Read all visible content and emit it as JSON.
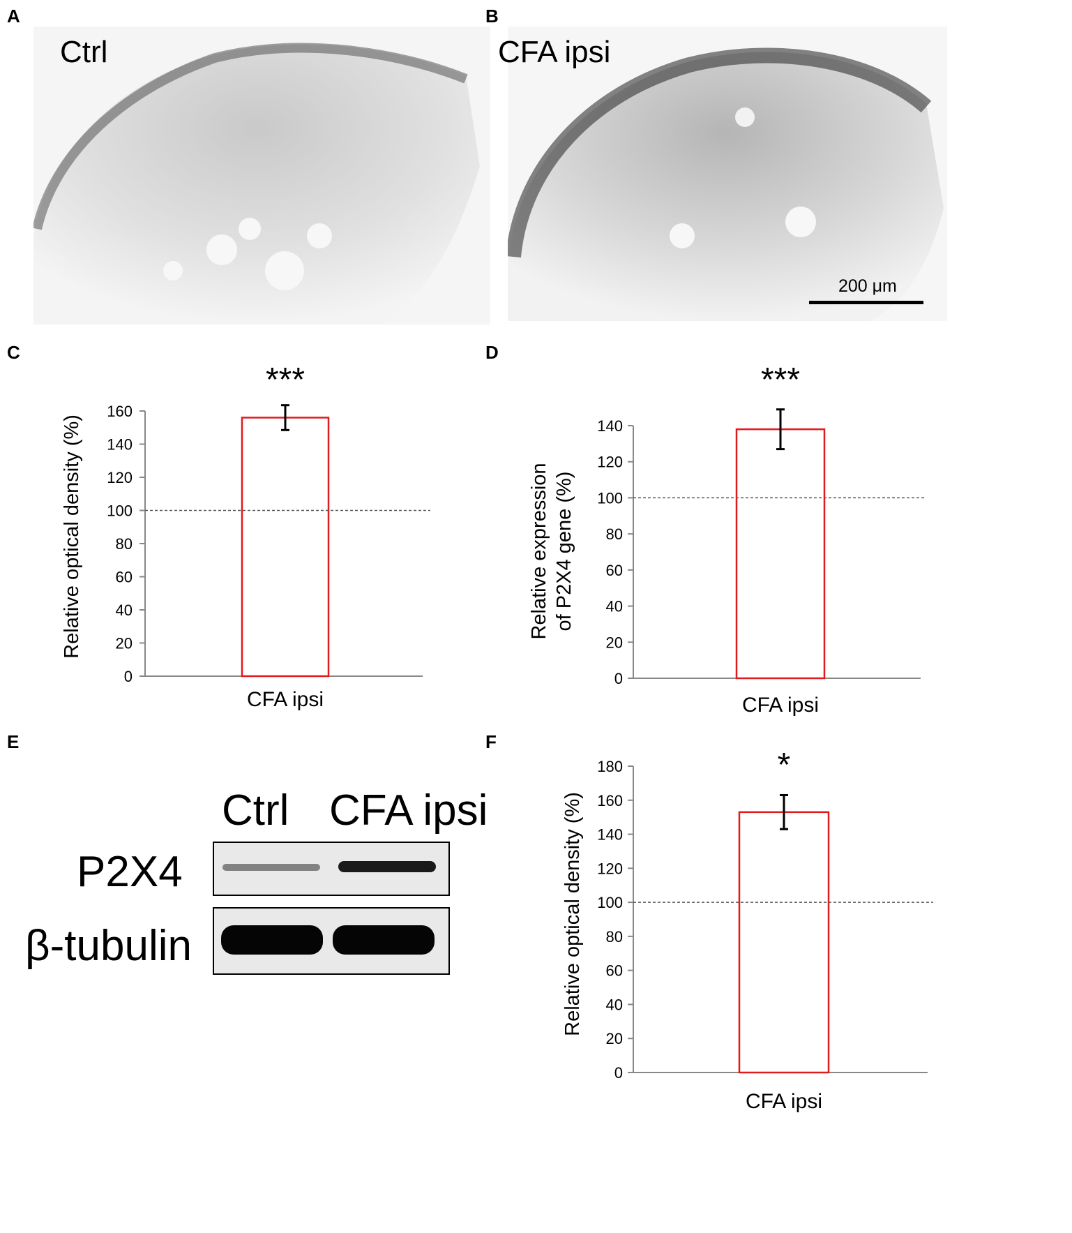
{
  "panels": {
    "A": {
      "letter": "A",
      "label": "Ctrl"
    },
    "B": {
      "letter": "B",
      "label": "CFA ipsi",
      "scalebar": "200 μm"
    },
    "C": {
      "letter": "C"
    },
    "D": {
      "letter": "D"
    },
    "E": {
      "letter": "E",
      "lanes": [
        "Ctrl",
        "CFA ipsi"
      ],
      "rows": [
        "P2X4",
        "β-tubulin"
      ]
    },
    "F": {
      "letter": "F"
    }
  },
  "colors": {
    "bar_edge": "#e31a1c",
    "error_bar": "#000000",
    "reference_line": "#555555"
  },
  "chart_data": [
    {
      "id": "C",
      "type": "bar",
      "categories": [
        "CFA ipsi"
      ],
      "values": [
        156
      ],
      "error": [
        7.5
      ],
      "ylabel": "Relative optical density (%)",
      "ylim": [
        0,
        160
      ],
      "yticks": [
        0,
        20,
        40,
        60,
        80,
        100,
        120,
        140,
        160
      ],
      "reference_line": 100,
      "significance": "***"
    },
    {
      "id": "D",
      "type": "bar",
      "categories": [
        "CFA ipsi"
      ],
      "values": [
        138
      ],
      "error": [
        11
      ],
      "ylabel": [
        "Relative expression",
        "of P2X4 gene (%)"
      ],
      "ylim": [
        0,
        140
      ],
      "yticks": [
        0,
        20,
        40,
        60,
        80,
        100,
        120,
        140
      ],
      "reference_line": 100,
      "significance": "***"
    },
    {
      "id": "F",
      "type": "bar",
      "categories": [
        "CFA ipsi"
      ],
      "values": [
        153
      ],
      "error": [
        10
      ],
      "ylabel": "Relative  optical density (%)",
      "ylim": [
        0,
        180
      ],
      "yticks": [
        0,
        20,
        40,
        60,
        80,
        100,
        120,
        140,
        160,
        180
      ],
      "reference_line": 100,
      "significance": "*"
    }
  ]
}
